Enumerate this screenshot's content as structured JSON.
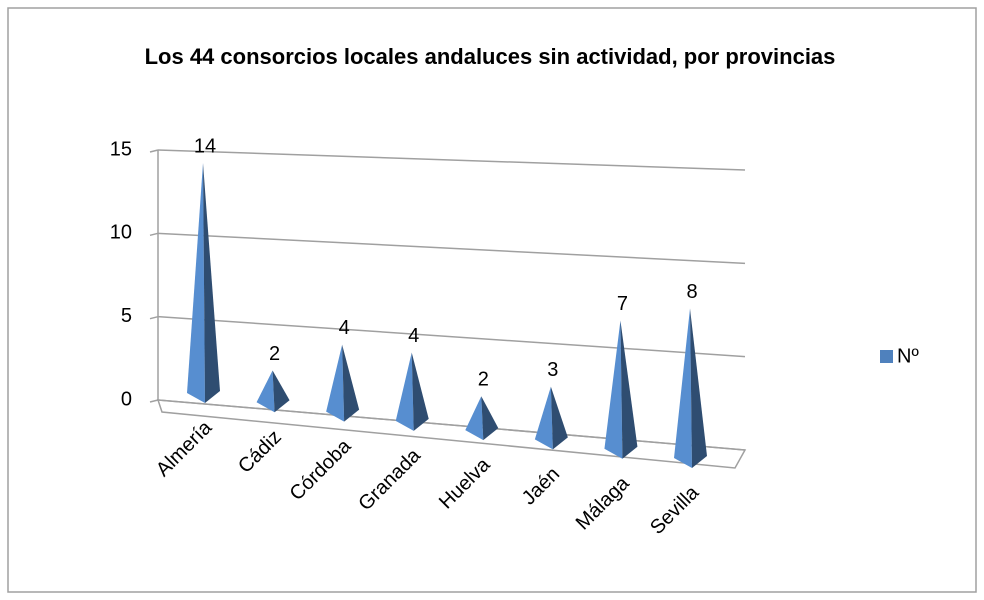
{
  "chart_data": {
    "type": "pyramid3d",
    "title": "Los 44 consorcios locales andaluces sin actividad, por provincias",
    "categories": [
      "Almería",
      "Cádiz",
      "Córdoba",
      "Granada",
      "Huelva",
      "Jaén",
      "Málaga",
      "Sevilla"
    ],
    "series": [
      {
        "name": "Nº",
        "color": "#4f81bd",
        "values": [
          14,
          2,
          4,
          4,
          2,
          3,
          7,
          8
        ]
      }
    ],
    "ylim": [
      0,
      15
    ],
    "yticks": [
      0,
      5,
      10,
      15
    ],
    "grid": true,
    "legend": "right"
  }
}
